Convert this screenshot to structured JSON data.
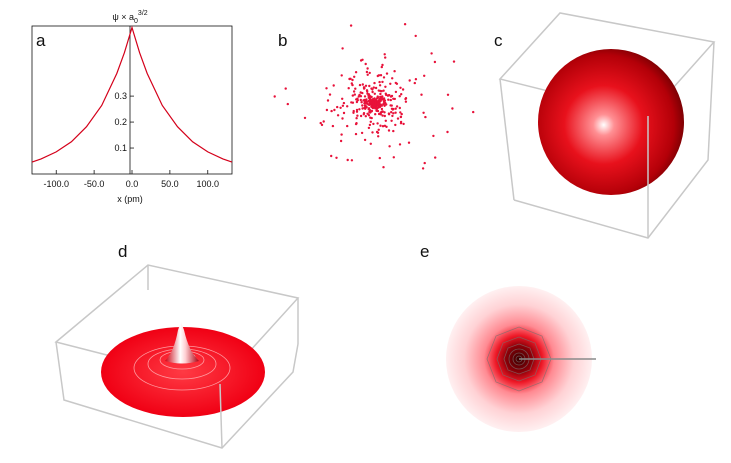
{
  "labels": {
    "a": "a",
    "b": "b",
    "c": "c",
    "d": "d",
    "e": "e"
  },
  "colors": {
    "curve": "#d4001a",
    "points": "#e8123a",
    "frame": "#bdbdbd"
  },
  "chart_data": {
    "type": "line",
    "title": "ψ × a",
    "title_sub": "0",
    "title_sup": "3/2",
    "xlabel": "x (pm)",
    "ylabel": "",
    "x_ticks": [
      "-100.0",
      "-50.0",
      "0.0",
      "50.0",
      "100.0"
    ],
    "x_tick_values": [
      -100,
      -50,
      0,
      50,
      100
    ],
    "y_ticks": [
      "0.1",
      "0.2",
      "0.3"
    ],
    "y_tick_values": [
      0.1,
      0.2,
      0.3
    ],
    "xlim": [
      -132,
      132
    ],
    "ylim": [
      0,
      0.57
    ],
    "function": "exp(-|x|/52.9)/sqrt(pi)",
    "series": [
      {
        "x": [
          -132,
          -120,
          -100,
          -80,
          -60,
          -40,
          -20,
          -10,
          0,
          10,
          20,
          40,
          60,
          80,
          100,
          120,
          132
        ],
        "values": [
          0.046,
          0.058,
          0.085,
          0.124,
          0.182,
          0.264,
          0.387,
          0.467,
          0.564,
          0.467,
          0.387,
          0.264,
          0.182,
          0.124,
          0.085,
          0.058,
          0.046
        ]
      }
    ]
  }
}
